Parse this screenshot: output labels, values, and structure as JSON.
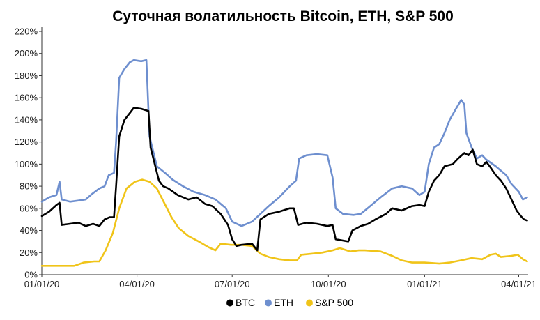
{
  "chart_data": {
    "type": "line",
    "title": "Суточная волатильность Bitcoin, ETH, S&P 500",
    "xlabel": "",
    "ylabel": "",
    "x_ticks": [
      "01/01/20",
      "04/01/20",
      "07/01/20",
      "10/01/20",
      "01/01/21",
      "04/01/21"
    ],
    "y_ticks": [
      "0%",
      "20%",
      "40%",
      "60%",
      "80%",
      "100%",
      "120%",
      "140%",
      "160%",
      "180%",
      "200%",
      "220%"
    ],
    "ylim": [
      0,
      220
    ],
    "x_range": [
      "2020-01-01",
      "2021-04-10"
    ],
    "grid": false,
    "legend_position": "bottom",
    "series": [
      {
        "name": "BTC",
        "color": "#000000",
        "points": [
          [
            "2020-01-01",
            53
          ],
          [
            "2020-01-08",
            57
          ],
          [
            "2020-01-15",
            63
          ],
          [
            "2020-01-18",
            65
          ],
          [
            "2020-01-20",
            45
          ],
          [
            "2020-01-28",
            46
          ],
          [
            "2020-02-05",
            47
          ],
          [
            "2020-02-12",
            44
          ],
          [
            "2020-02-19",
            46
          ],
          [
            "2020-02-25",
            44
          ],
          [
            "2020-03-01",
            50
          ],
          [
            "2020-03-06",
            52
          ],
          [
            "2020-03-10",
            52
          ],
          [
            "2020-03-12",
            80
          ],
          [
            "2020-03-15",
            125
          ],
          [
            "2020-03-20",
            140
          ],
          [
            "2020-03-25",
            146
          ],
          [
            "2020-03-29",
            151
          ],
          [
            "2020-04-05",
            150
          ],
          [
            "2020-04-12",
            148
          ],
          [
            "2020-04-14",
            115
          ],
          [
            "2020-04-18",
            100
          ],
          [
            "2020-04-22",
            85
          ],
          [
            "2020-04-26",
            80
          ],
          [
            "2020-05-01",
            78
          ],
          [
            "2020-05-10",
            72
          ],
          [
            "2020-05-20",
            68
          ],
          [
            "2020-05-28",
            70
          ],
          [
            "2020-06-05",
            64
          ],
          [
            "2020-06-12",
            62
          ],
          [
            "2020-06-20",
            55
          ],
          [
            "2020-06-27",
            45
          ],
          [
            "2020-07-01",
            32
          ],
          [
            "2020-07-05",
            26
          ],
          [
            "2020-07-10",
            27
          ],
          [
            "2020-07-20",
            28
          ],
          [
            "2020-07-25",
            22
          ],
          [
            "2020-07-28",
            50
          ],
          [
            "2020-08-05",
            55
          ],
          [
            "2020-08-15",
            57
          ],
          [
            "2020-08-25",
            60
          ],
          [
            "2020-08-29",
            60
          ],
          [
            "2020-09-02",
            45
          ],
          [
            "2020-09-10",
            47
          ],
          [
            "2020-09-20",
            46
          ],
          [
            "2020-09-30",
            44
          ],
          [
            "2020-10-05",
            45
          ],
          [
            "2020-10-08",
            32
          ],
          [
            "2020-10-20",
            30
          ],
          [
            "2020-10-24",
            40
          ],
          [
            "2020-11-01",
            44
          ],
          [
            "2020-11-08",
            46
          ],
          [
            "2020-11-15",
            50
          ],
          [
            "2020-11-25",
            55
          ],
          [
            "2020-12-01",
            60
          ],
          [
            "2020-12-10",
            58
          ],
          [
            "2020-12-20",
            62
          ],
          [
            "2020-12-27",
            63
          ],
          [
            "2021-01-01",
            62
          ],
          [
            "2021-01-05",
            75
          ],
          [
            "2021-01-10",
            85
          ],
          [
            "2021-01-15",
            90
          ],
          [
            "2021-01-20",
            98
          ],
          [
            "2021-01-28",
            100
          ],
          [
            "2021-02-02",
            105
          ],
          [
            "2021-02-08",
            110
          ],
          [
            "2021-02-12",
            108
          ],
          [
            "2021-02-16",
            113
          ],
          [
            "2021-02-20",
            100
          ],
          [
            "2021-02-25",
            98
          ],
          [
            "2021-03-01",
            102
          ],
          [
            "2021-03-05",
            97
          ],
          [
            "2021-03-10",
            90
          ],
          [
            "2021-03-15",
            85
          ],
          [
            "2021-03-20",
            78
          ],
          [
            "2021-03-25",
            68
          ],
          [
            "2021-03-30",
            58
          ],
          [
            "2021-04-03",
            53
          ],
          [
            "2021-04-06",
            50
          ],
          [
            "2021-04-09",
            49
          ]
        ]
      },
      {
        "name": "ETH",
        "color": "#6e8fcf",
        "points": [
          [
            "2020-01-01",
            66
          ],
          [
            "2020-01-08",
            70
          ],
          [
            "2020-01-15",
            72
          ],
          [
            "2020-01-18",
            84
          ],
          [
            "2020-01-20",
            68
          ],
          [
            "2020-01-28",
            66
          ],
          [
            "2020-02-05",
            67
          ],
          [
            "2020-02-12",
            68
          ],
          [
            "2020-02-18",
            73
          ],
          [
            "2020-02-25",
            78
          ],
          [
            "2020-03-01",
            80
          ],
          [
            "2020-03-05",
            90
          ],
          [
            "2020-03-10",
            92
          ],
          [
            "2020-03-12",
            120
          ],
          [
            "2020-03-15",
            178
          ],
          [
            "2020-03-20",
            186
          ],
          [
            "2020-03-25",
            192
          ],
          [
            "2020-03-29",
            194
          ],
          [
            "2020-04-05",
            193
          ],
          [
            "2020-04-10",
            194
          ],
          [
            "2020-04-13",
            125
          ],
          [
            "2020-04-20",
            98
          ],
          [
            "2020-04-28",
            92
          ],
          [
            "2020-05-05",
            86
          ],
          [
            "2020-05-15",
            80
          ],
          [
            "2020-05-25",
            75
          ],
          [
            "2020-06-05",
            72
          ],
          [
            "2020-06-15",
            68
          ],
          [
            "2020-06-25",
            60
          ],
          [
            "2020-07-01",
            48
          ],
          [
            "2020-07-10",
            44
          ],
          [
            "2020-07-20",
            48
          ],
          [
            "2020-07-28",
            55
          ],
          [
            "2020-08-05",
            62
          ],
          [
            "2020-08-15",
            70
          ],
          [
            "2020-08-25",
            80
          ],
          [
            "2020-08-31",
            85
          ],
          [
            "2020-09-03",
            105
          ],
          [
            "2020-09-10",
            108
          ],
          [
            "2020-09-20",
            109
          ],
          [
            "2020-09-30",
            108
          ],
          [
            "2020-10-05",
            88
          ],
          [
            "2020-10-08",
            60
          ],
          [
            "2020-10-15",
            55
          ],
          [
            "2020-10-25",
            54
          ],
          [
            "2020-11-01",
            55
          ],
          [
            "2020-11-10",
            62
          ],
          [
            "2020-11-20",
            70
          ],
          [
            "2020-12-01",
            78
          ],
          [
            "2020-12-10",
            80
          ],
          [
            "2020-12-20",
            78
          ],
          [
            "2020-12-27",
            72
          ],
          [
            "2021-01-01",
            75
          ],
          [
            "2021-01-05",
            100
          ],
          [
            "2021-01-10",
            115
          ],
          [
            "2021-01-15",
            118
          ],
          [
            "2021-01-20",
            128
          ],
          [
            "2021-01-25",
            140
          ],
          [
            "2021-01-31",
            150
          ],
          [
            "2021-02-05",
            158
          ],
          [
            "2021-02-08",
            154
          ],
          [
            "2021-02-10",
            128
          ],
          [
            "2021-02-15",
            115
          ],
          [
            "2021-02-20",
            105
          ],
          [
            "2021-02-25",
            108
          ],
          [
            "2021-03-01",
            104
          ],
          [
            "2021-03-10",
            98
          ],
          [
            "2021-03-20",
            90
          ],
          [
            "2021-03-25",
            82
          ],
          [
            "2021-04-01",
            75
          ],
          [
            "2021-04-05",
            68
          ],
          [
            "2021-04-09",
            70
          ]
        ]
      },
      {
        "name": "S&P 500",
        "color": "#f0c419",
        "points": [
          [
            "2020-01-01",
            8
          ],
          [
            "2020-01-15",
            8
          ],
          [
            "2020-02-01",
            8
          ],
          [
            "2020-02-10",
            11
          ],
          [
            "2020-02-20",
            12
          ],
          [
            "2020-02-25",
            12
          ],
          [
            "2020-03-02",
            22
          ],
          [
            "2020-03-09",
            38
          ],
          [
            "2020-03-15",
            60
          ],
          [
            "2020-03-22",
            78
          ],
          [
            "2020-03-30",
            84
          ],
          [
            "2020-04-06",
            86
          ],
          [
            "2020-04-13",
            84
          ],
          [
            "2020-04-20",
            78
          ],
          [
            "2020-04-27",
            65
          ],
          [
            "2020-05-04",
            52
          ],
          [
            "2020-05-11",
            42
          ],
          [
            "2020-05-20",
            35
          ],
          [
            "2020-05-30",
            30
          ],
          [
            "2020-06-08",
            25
          ],
          [
            "2020-06-15",
            22
          ],
          [
            "2020-06-20",
            28
          ],
          [
            "2020-06-30",
            27
          ],
          [
            "2020-07-10",
            27
          ],
          [
            "2020-07-20",
            26
          ],
          [
            "2020-07-28",
            19
          ],
          [
            "2020-08-05",
            16
          ],
          [
            "2020-08-15",
            14
          ],
          [
            "2020-08-25",
            13
          ],
          [
            "2020-09-01",
            13
          ],
          [
            "2020-09-05",
            18
          ],
          [
            "2020-09-15",
            19
          ],
          [
            "2020-09-25",
            20
          ],
          [
            "2020-10-05",
            22
          ],
          [
            "2020-10-12",
            24
          ],
          [
            "2020-10-22",
            21
          ],
          [
            "2020-10-30",
            22
          ],
          [
            "2020-11-05",
            22
          ],
          [
            "2020-11-20",
            21
          ],
          [
            "2020-12-01",
            17
          ],
          [
            "2020-12-10",
            13
          ],
          [
            "2020-12-20",
            11
          ],
          [
            "2021-01-01",
            11
          ],
          [
            "2021-01-15",
            10
          ],
          [
            "2021-01-25",
            11
          ],
          [
            "2021-02-05",
            13
          ],
          [
            "2021-02-15",
            15
          ],
          [
            "2021-02-25",
            14
          ],
          [
            "2021-03-05",
            18
          ],
          [
            "2021-03-10",
            19
          ],
          [
            "2021-03-15",
            16
          ],
          [
            "2021-03-25",
            17
          ],
          [
            "2021-03-31",
            18
          ],
          [
            "2021-04-05",
            14
          ],
          [
            "2021-04-09",
            12
          ]
        ]
      }
    ]
  }
}
